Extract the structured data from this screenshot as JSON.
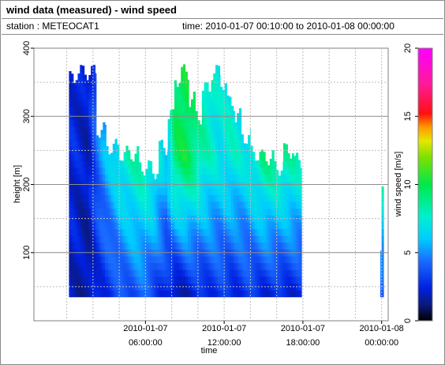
{
  "header": {
    "title": "wind data (measured) - wind speed",
    "station": "station : METEOCAT1",
    "time_range": "time: 2010-01-07 00:10:00 to 2010-01-08 00:00:00"
  },
  "chart_data": {
    "type": "heatmap",
    "title": "wind data (measured) - wind speed",
    "xlabel": "time",
    "ylabel": "height [m]",
    "colorbar_label": "wind speed [m/s]",
    "xlim": [
      -2.5,
      24.5
    ],
    "ylim": [
      0,
      400
    ],
    "x_ticks": [
      {
        "value": 6,
        "label": [
          "2010-01-07",
          "06:00:00"
        ]
      },
      {
        "value": 12,
        "label": [
          "2010-01-07",
          "12:00:00"
        ]
      },
      {
        "value": 18,
        "label": [
          "2010-01-07",
          "18:00:00"
        ]
      },
      {
        "value": 24,
        "label": [
          "2010-01-08",
          "00:00:00"
        ]
      }
    ],
    "y_ticks": [
      100,
      200,
      300,
      400
    ],
    "colorbar_range": [
      0,
      20
    ],
    "colorbar_ticks": [
      0,
      5,
      10,
      15,
      20
    ],
    "grid": true,
    "x_unit": "hours since 2010-01-07 00:00",
    "bin_width_hours": 0.1667,
    "height_bin_m": 10,
    "height_min_m": 35,
    "columns": [
      {
        "start": 0.17,
        "end": 0.67,
        "top": 355
      },
      {
        "start": 0.67,
        "end": 2.25,
        "top": 365
      },
      {
        "start": 2.25,
        "end": 3.0,
        "top": 280
      },
      {
        "start": 3.0,
        "end": 4.0,
        "top": 255
      },
      {
        "start": 4.0,
        "end": 5.5,
        "top": 245
      },
      {
        "start": 5.5,
        "end": 6.5,
        "top": 225
      },
      {
        "start": 6.5,
        "end": 7.0,
        "top": 220
      },
      {
        "start": 7.0,
        "end": 7.7,
        "top": 255
      },
      {
        "start": 7.7,
        "end": 8.2,
        "top": 300
      },
      {
        "start": 8.2,
        "end": 8.7,
        "top": 355
      },
      {
        "start": 8.7,
        "end": 9.3,
        "top": 365
      },
      {
        "start": 9.3,
        "end": 9.8,
        "top": 325
      },
      {
        "start": 9.8,
        "end": 10.3,
        "top": 300
      },
      {
        "start": 10.3,
        "end": 11.0,
        "top": 340
      },
      {
        "start": 11.0,
        "end": 11.7,
        "top": 365
      },
      {
        "start": 11.7,
        "end": 12.2,
        "top": 350
      },
      {
        "start": 12.2,
        "end": 12.8,
        "top": 320
      },
      {
        "start": 12.8,
        "end": 13.3,
        "top": 300
      },
      {
        "start": 13.3,
        "end": 14.0,
        "top": 270
      },
      {
        "start": 14.0,
        "end": 14.8,
        "top": 245
      },
      {
        "start": 14.8,
        "end": 15.8,
        "top": 240
      },
      {
        "start": 15.8,
        "end": 16.5,
        "top": 225
      },
      {
        "start": 16.5,
        "end": 17.3,
        "top": 250
      },
      {
        "start": 17.3,
        "end": 17.9,
        "top": 235
      }
    ],
    "columns_late": [
      {
        "start": 23.9,
        "end": 24.0,
        "top": 115
      },
      {
        "start": 24.0,
        "end": 24.15,
        "top": 205
      }
    ],
    "speed_profile_mps": [
      {
        "time": 0.5,
        "low": 2.0,
        "high": 2.5
      },
      {
        "time": 1.5,
        "low": 1.5,
        "high": 2.0
      },
      {
        "time": 2.5,
        "low": 2.5,
        "high": 5.0
      },
      {
        "time": 4.0,
        "low": 3.5,
        "high": 7.5
      },
      {
        "time": 5.5,
        "low": 4.0,
        "high": 8.5
      },
      {
        "time": 6.5,
        "low": 3.5,
        "high": 8.0
      },
      {
        "time": 7.5,
        "low": 2.5,
        "high": 6.0
      },
      {
        "time": 8.2,
        "low": 1.5,
        "high": 9.5
      },
      {
        "time": 9.0,
        "low": 2.0,
        "high": 10.0
      },
      {
        "time": 10.0,
        "low": 2.5,
        "high": 8.5
      },
      {
        "time": 11.5,
        "low": 3.0,
        "high": 7.0
      },
      {
        "time": 12.5,
        "low": 2.5,
        "high": 7.5
      },
      {
        "time": 13.5,
        "low": 3.0,
        "high": 7.0
      },
      {
        "time": 15.0,
        "low": 2.5,
        "high": 9.0
      },
      {
        "time": 16.5,
        "low": 2.5,
        "high": 8.5
      },
      {
        "time": 17.8,
        "low": 2.5,
        "high": 8.0
      },
      {
        "time": 24.0,
        "low": 3.5,
        "high": 9.0
      }
    ]
  }
}
